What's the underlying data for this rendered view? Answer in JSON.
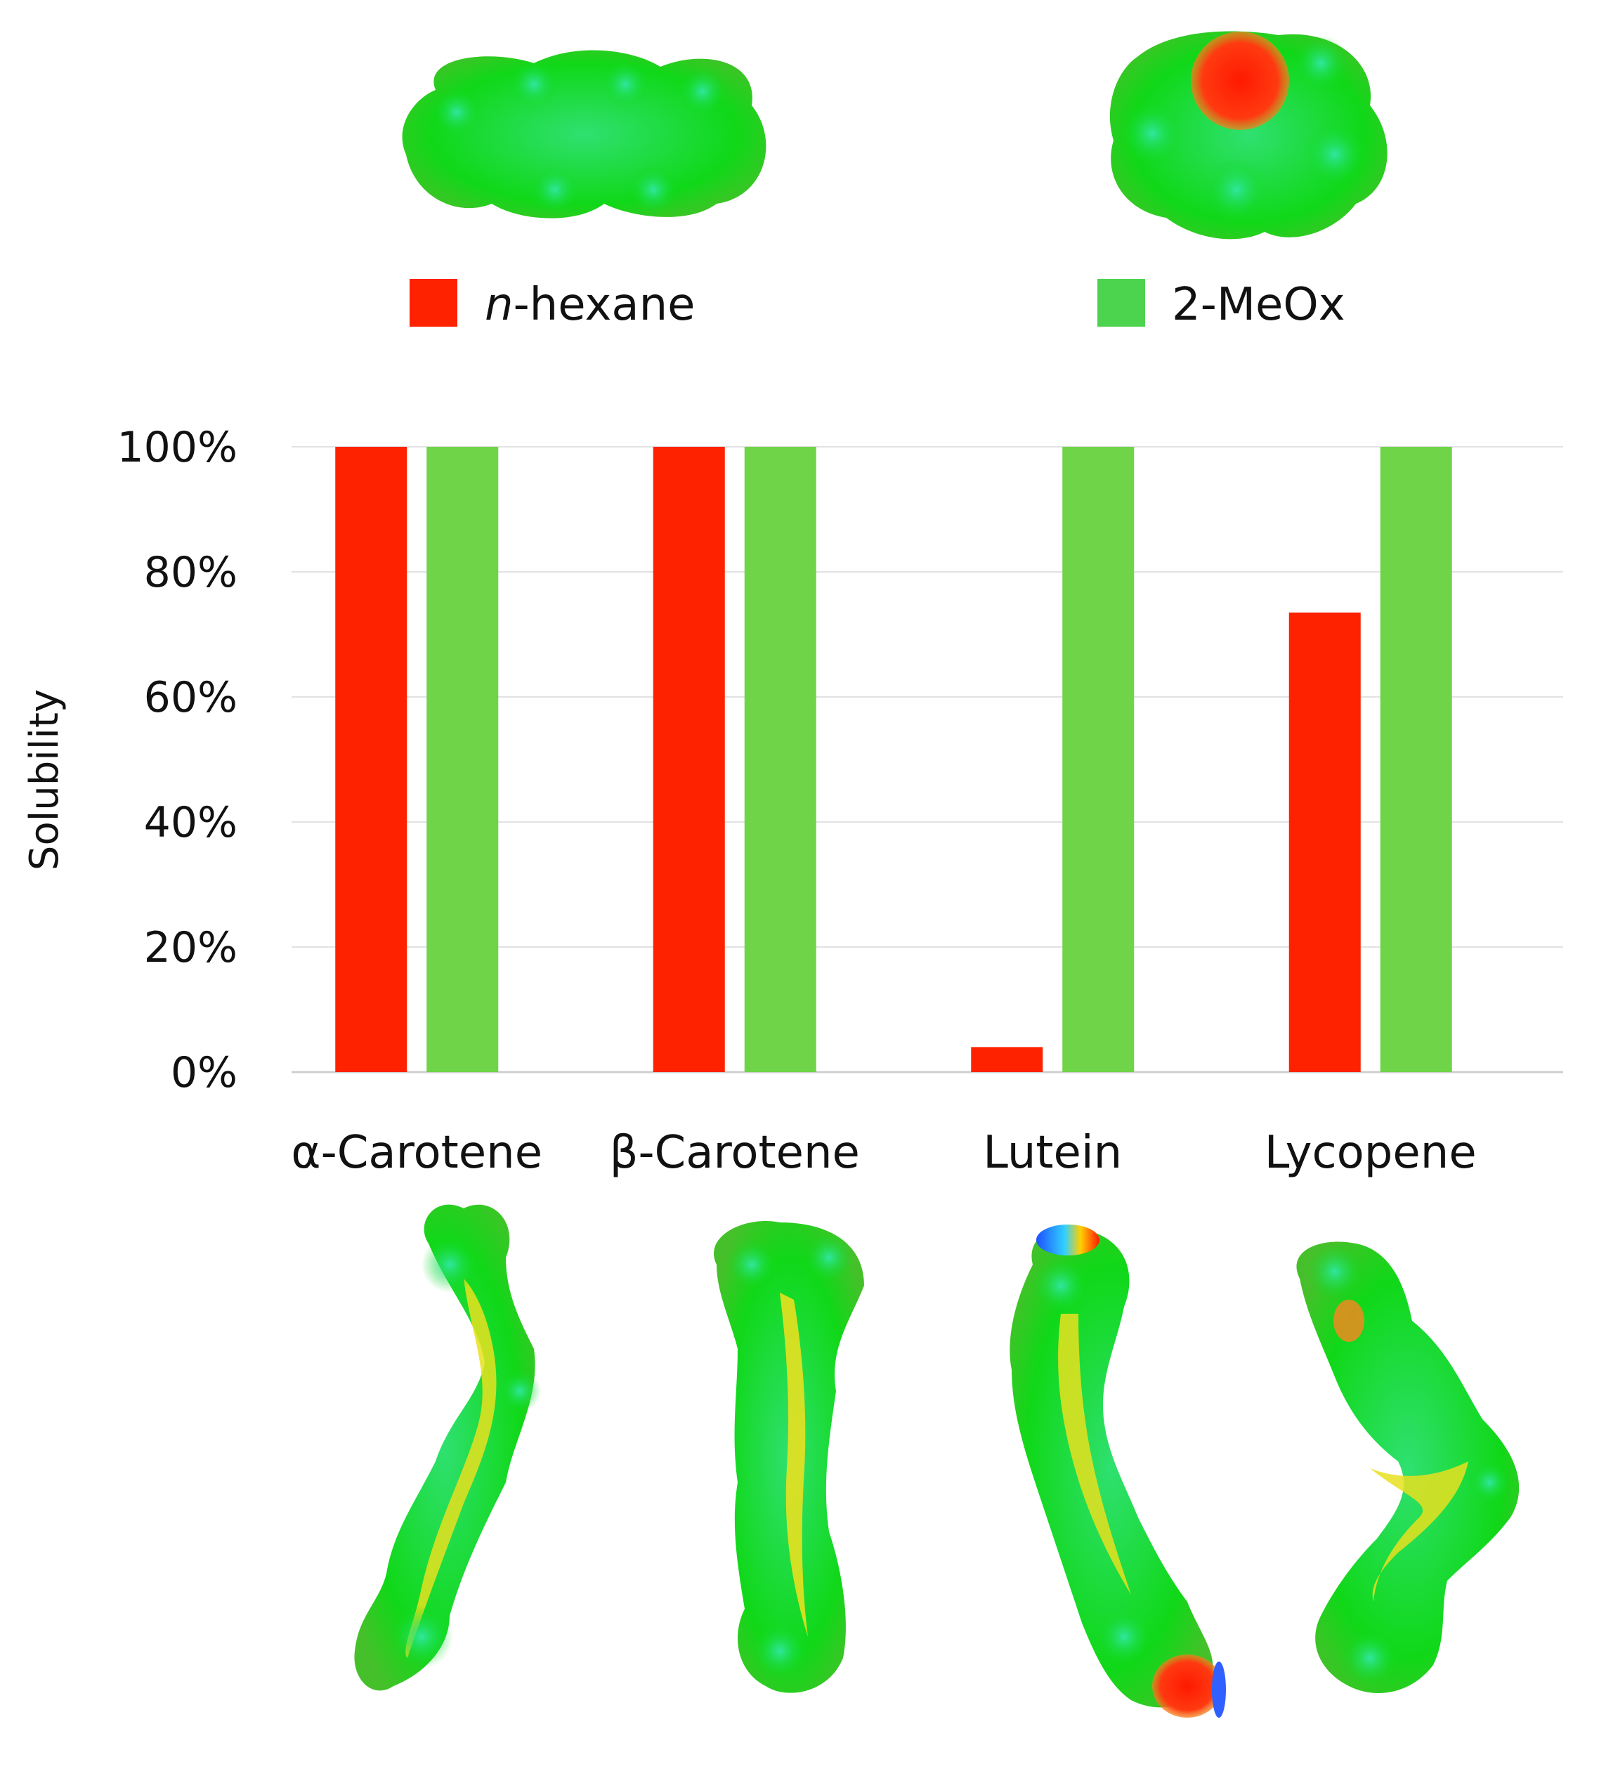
{
  "legend": {
    "items": [
      {
        "prefix": "n",
        "text": "-hexane",
        "color": "#ff2200"
      },
      {
        "prefix": "",
        "text": "2-MeOx",
        "color": "#6fd447"
      }
    ]
  },
  "chart_data": {
    "type": "bar",
    "categories": [
      "α-Carotene",
      "β-Carotene",
      "Lutein",
      "Lycopene"
    ],
    "series": [
      {
        "name": "n-hexane",
        "values": [
          100,
          100,
          4,
          73.5
        ],
        "color": "#ff2200"
      },
      {
        "name": "2-MeOx",
        "values": [
          100,
          100,
          100,
          100
        ],
        "color": "#6fd447"
      }
    ],
    "ylabel": "Solubility",
    "ylim": [
      0,
      100
    ],
    "yticks": [
      0,
      20,
      40,
      60,
      80,
      100
    ],
    "ytick_labels": [
      "0%",
      "20%",
      "40%",
      "60%",
      "80%",
      "100%"
    ],
    "grid": true,
    "legend_position": "top"
  },
  "molecules": [
    {
      "name": "n-hexane-surface-image"
    },
    {
      "name": "2-meox-surface-image"
    },
    {
      "name": "alpha-carotene-surface-image"
    },
    {
      "name": "beta-carotene-surface-image"
    },
    {
      "name": "lutein-surface-image"
    },
    {
      "name": "lycopene-surface-image"
    }
  ]
}
